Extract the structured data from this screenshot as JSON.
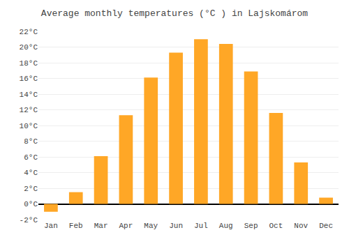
{
  "chart_data": {
    "type": "bar",
    "title": "Average monthly temperatures (°C ) in Lajskomárom",
    "categories": [
      "Jan",
      "Feb",
      "Mar",
      "Apr",
      "May",
      "Jun",
      "Jul",
      "Aug",
      "Sep",
      "Oct",
      "Nov",
      "Dec"
    ],
    "values": [
      -1.0,
      1.5,
      6.1,
      11.3,
      16.1,
      19.3,
      21.0,
      20.4,
      16.9,
      11.6,
      5.3,
      0.8
    ],
    "color": "#FFA726",
    "ylim": [
      -2,
      22
    ],
    "yticks": [
      {
        "value": -2,
        "label": "-2°C"
      },
      {
        "value": 0,
        "label": "0°C"
      },
      {
        "value": 2,
        "label": "2°C"
      },
      {
        "value": 4,
        "label": "4°C"
      },
      {
        "value": 6,
        "label": "6°C"
      },
      {
        "value": 8,
        "label": "8°C"
      },
      {
        "value": 10,
        "label": "10°C"
      },
      {
        "value": 12,
        "label": "12°C"
      },
      {
        "value": 14,
        "label": "14°C"
      },
      {
        "value": 16,
        "label": "16°C"
      },
      {
        "value": 18,
        "label": "18°C"
      },
      {
        "value": 20,
        "label": "20°C"
      },
      {
        "value": 22,
        "label": "22°C"
      }
    ],
    "grid": true
  }
}
